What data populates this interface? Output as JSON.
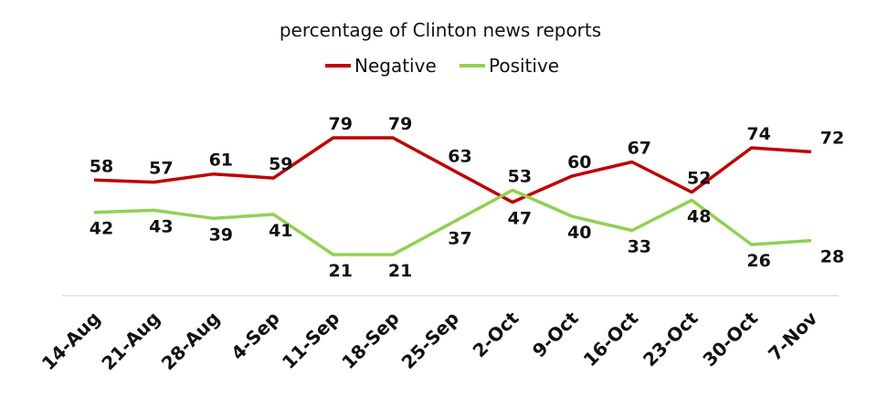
{
  "chart_data": {
    "type": "line",
    "title": "percentage of Clinton news reports",
    "categories": [
      "14-Aug",
      "21-Aug",
      "28-Aug",
      "4-Sep",
      "11-Sep",
      "18-Sep",
      "25-Sep",
      "2-Oct",
      "9-Oct",
      "16-Oct",
      "23-Oct",
      "30-Oct",
      "7-Nov"
    ],
    "series": [
      {
        "name": "Negative",
        "color": "#c00000",
        "values": [
          58,
          57,
          61,
          59,
          79,
          79,
          63,
          47,
          60,
          67,
          52,
          74,
          72
        ]
      },
      {
        "name": "Positive",
        "color": "#92d050",
        "values": [
          42,
          43,
          39,
          41,
          21,
          21,
          37,
          53,
          40,
          33,
          48,
          26,
          28
        ]
      }
    ],
    "legend": "top-center",
    "grid": false,
    "xlabel": "",
    "ylabel": ""
  }
}
